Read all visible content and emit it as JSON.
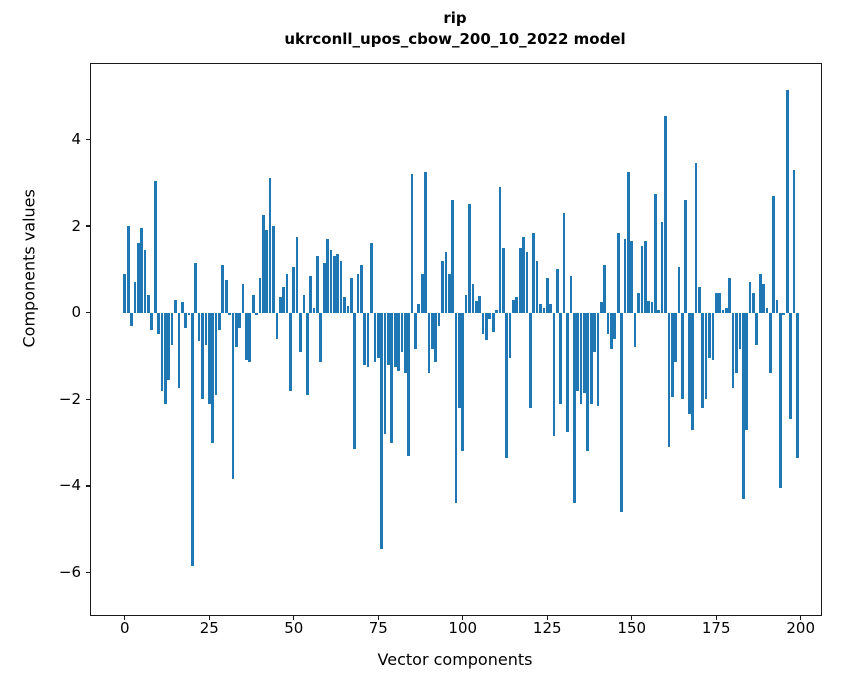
{
  "title": {
    "line1": "rip",
    "line2": "ukrconll_upos_cbow_200_10_2022 model"
  },
  "axes": {
    "xlabel": "Vector components",
    "ylabel": "Components values",
    "x_tick_values": [
      0,
      25,
      50,
      75,
      100,
      125,
      150,
      175,
      200
    ],
    "x_tick_labels": [
      "0",
      "25",
      "50",
      "75",
      "100",
      "125",
      "150",
      "175",
      "200"
    ],
    "y_tick_values": [
      4,
      2,
      0,
      -2,
      -4,
      -6
    ],
    "y_tick_labels": [
      "4",
      "2",
      "0",
      "−2",
      "−4",
      "−6"
    ]
  },
  "colors": {
    "bar": "#1f77b4",
    "axis": "#1a1a1a",
    "background": "#ffffff"
  },
  "chart_data": {
    "type": "bar",
    "title": "rip",
    "subtitle": "ukrconll_upos_cbow_200_10_2022 model",
    "xlabel": "Vector components",
    "ylabel": "Components values",
    "xlim": [
      -10,
      206
    ],
    "ylim": [
      -6.98,
      5.74
    ],
    "grid": false,
    "legend": false,
    "n_components": 200,
    "values": [
      0.9,
      2.0,
      -0.3,
      0.7,
      1.6,
      1.95,
      1.45,
      0.4,
      -0.4,
      3.05,
      -0.5,
      -1.8,
      -2.1,
      -1.55,
      -0.75,
      0.3,
      -1.75,
      0.25,
      -0.35,
      -0.05,
      -5.85,
      1.15,
      -0.65,
      -2.0,
      -0.75,
      -2.1,
      -3.0,
      -1.9,
      -0.4,
      1.1,
      0.75,
      -0.05,
      -3.85,
      -0.8,
      -0.35,
      0.65,
      -1.1,
      -1.15,
      0.4,
      -0.05,
      0.8,
      2.25,
      1.9,
      3.1,
      2.0,
      -0.6,
      0.35,
      0.6,
      0.9,
      -1.8,
      1.05,
      1.75,
      -0.9,
      0.4,
      -1.9,
      0.85,
      0.1,
      1.3,
      -1.15,
      1.15,
      1.7,
      1.45,
      1.3,
      1.35,
      1.2,
      0.35,
      0.15,
      0.8,
      -3.15,
      0.9,
      1.1,
      -1.2,
      -1.25,
      1.6,
      -1.15,
      -1.05,
      -5.45,
      -2.8,
      -1.2,
      -3.0,
      -1.25,
      -1.35,
      -0.9,
      -1.4,
      -3.3,
      3.2,
      -0.85,
      0.2,
      0.9,
      3.25,
      -1.4,
      -0.85,
      -1.15,
      -0.3,
      1.2,
      1.4,
      0.9,
      2.6,
      -4.4,
      -2.2,
      -3.2,
      0.4,
      2.5,
      0.65,
      0.27,
      0.38,
      -0.5,
      -0.63,
      -0.15,
      -0.45,
      0.05,
      2.9,
      1.5,
      -3.35,
      -1.05,
      0.3,
      0.35,
      1.5,
      1.75,
      1.4,
      -2.2,
      1.85,
      1.2,
      0.2,
      0.1,
      0.8,
      0.2,
      -2.85,
      1.0,
      -2.1,
      2.3,
      -2.75,
      0.85,
      -4.4,
      -1.8,
      -2.1,
      -1.85,
      -3.2,
      -2.1,
      -0.9,
      -2.15,
      0.25,
      1.1,
      -0.5,
      -0.85,
      -0.6,
      1.85,
      -4.6,
      1.7,
      3.25,
      1.65,
      -0.8,
      0.45,
      1.55,
      1.65,
      0.27,
      0.25,
      2.75,
      0.05,
      2.1,
      4.55,
      -3.1,
      -1.95,
      -1.15,
      1.05,
      -2.0,
      2.6,
      -2.35,
      -2.7,
      3.45,
      0.6,
      -2.2,
      -2.0,
      -1.05,
      -1.1,
      0.45,
      0.45,
      0.05,
      0.1,
      0.8,
      -1.75,
      -1.4,
      -0.85,
      -4.3,
      -2.7,
      0.7,
      0.45,
      -0.75,
      0.9,
      0.65,
      0.1,
      -1.4,
      2.7,
      0.3,
      -4.05,
      -0.05,
      5.15,
      -2.45,
      3.3,
      -3.35
    ]
  }
}
